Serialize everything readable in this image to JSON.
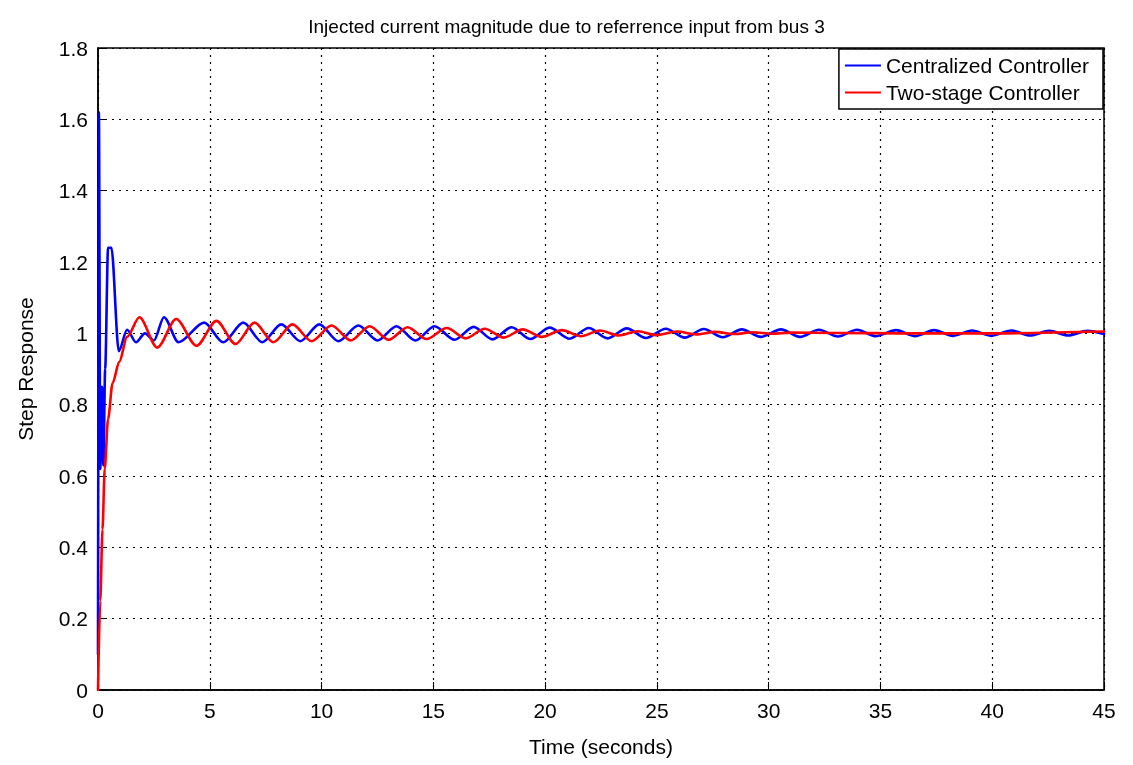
{
  "chart_data": {
    "type": "line",
    "title": "Injected current magnitude due to referrence input from bus 3",
    "xlabel": "Time (seconds)",
    "ylabel": "Step Response",
    "xlim": [
      0,
      45
    ],
    "xticks": [
      0,
      5,
      10,
      15,
      20,
      25,
      30,
      35,
      40,
      45
    ],
    "ylim": [
      0,
      1.8
    ],
    "yticks": [
      0,
      0.2,
      0.4,
      0.6,
      0.8,
      1,
      1.2,
      1.4,
      1.6,
      1.8
    ],
    "grid": true,
    "legend": "top right",
    "marker": "none",
    "line_style": "solid",
    "series": [
      {
        "name": "Centralized Controller",
        "color": "#0000ff",
        "x": [
          0,
          0.04,
          0.1,
          0.18,
          0.24,
          0.32,
          0.45,
          0.6,
          0.93,
          1.3,
          1.7,
          2.1,
          2.5,
          2.95,
          3.6,
          4.75,
          5.6,
          6.5,
          7.35,
          8.2,
          9.05,
          9.9,
          10.75,
          11.65,
          12.5,
          13.35,
          14.2,
          15.05,
          15.95,
          16.8,
          17.65,
          18.5,
          19.35,
          20.2,
          21.1,
          21.95,
          22.8,
          23.65,
          24.5,
          25.4,
          26.25,
          27.1,
          27.95,
          28.8,
          29.65,
          30.55,
          31.4,
          32.25,
          33.1,
          33.95,
          34.8,
          35.7,
          36.55,
          37.4,
          38.25,
          39.1,
          39.95,
          40.85,
          41.7,
          42.55,
          43.4,
          44.25,
          45
        ],
        "values": [
          0.1,
          1.62,
          0.62,
          0.85,
          0.63,
          0.9,
          1.24,
          1.24,
          0.95,
          1.01,
          0.975,
          1.0,
          0.98,
          1.045,
          0.975,
          1.03,
          0.975,
          1.03,
          0.975,
          1.025,
          0.978,
          1.025,
          0.978,
          1.022,
          0.98,
          1.02,
          0.98,
          1.02,
          0.982,
          1.018,
          0.983,
          1.017,
          0.984,
          1.016,
          0.985,
          1.015,
          0.986,
          1.014,
          0.987,
          1.013,
          0.988,
          1.012,
          0.989,
          1.011,
          0.99,
          1.011,
          0.99,
          1.01,
          0.991,
          1.01,
          0.992,
          1.009,
          0.992,
          1.009,
          0.993,
          1.008,
          0.993,
          1.008,
          0.994,
          1.007,
          0.994,
          1.007,
          0.998
        ]
      },
      {
        "name": "Two-stage Controller",
        "color": "#ff0000",
        "x": [
          0,
          0.1,
          0.2,
          0.3,
          0.45,
          0.65,
          0.95,
          1.3,
          1.85,
          2.65,
          3.5,
          4.4,
          5.3,
          6.15,
          7.0,
          7.85,
          8.7,
          9.55,
          10.45,
          11.3,
          12.15,
          13.0,
          13.85,
          14.7,
          15.6,
          16.45,
          17.3,
          18.15,
          19.0,
          19.85,
          20.75,
          21.6,
          22.45,
          23.3,
          24.15,
          25.0,
          25.9,
          26.75,
          27.6,
          28.45,
          29.3,
          30.15,
          31,
          33,
          36,
          40,
          45
        ],
        "values": [
          0,
          0.25,
          0.45,
          0.62,
          0.76,
          0.86,
          0.92,
          0.99,
          1.045,
          0.96,
          1.04,
          0.965,
          1.035,
          0.97,
          1.03,
          0.975,
          1.025,
          0.978,
          1.022,
          0.98,
          1.02,
          0.982,
          1.017,
          0.984,
          1.015,
          0.986,
          1.013,
          0.988,
          1.011,
          0.99,
          1.009,
          0.992,
          1.008,
          0.994,
          1.006,
          0.995,
          1.005,
          0.997,
          1.004,
          0.998,
          1.003,
          0.999,
          1.002,
          1.001,
          1.0,
          1.0,
          1.005
        ]
      }
    ]
  }
}
